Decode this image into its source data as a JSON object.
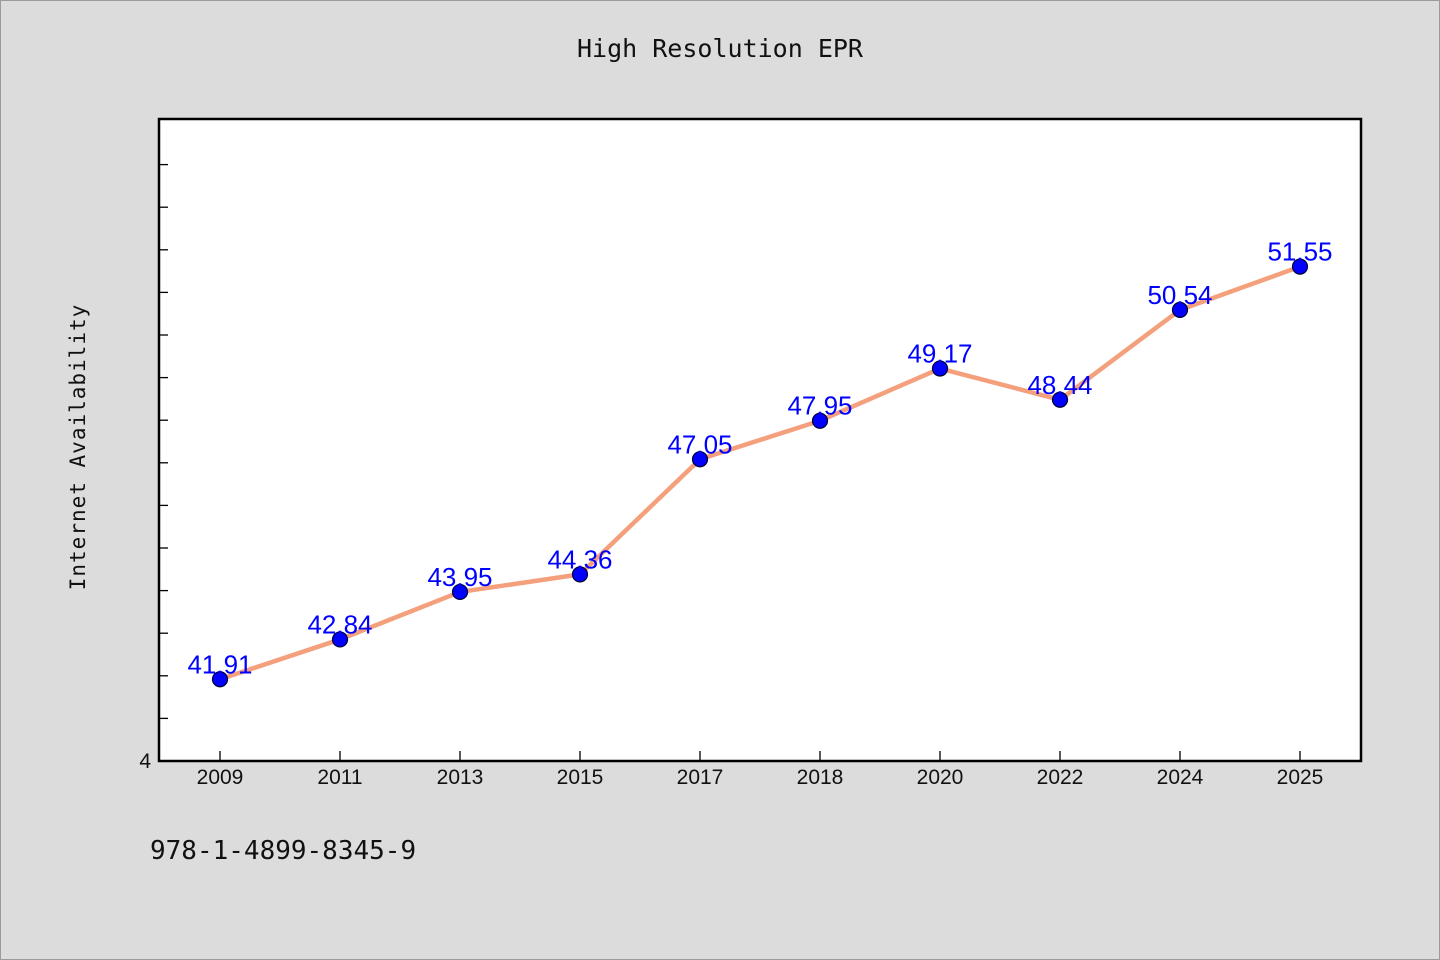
{
  "chart_data": {
    "type": "line",
    "title": "High Resolution EPR",
    "xlabel": "",
    "ylabel": "Internet Availability",
    "categories": [
      "2009",
      "2011",
      "2013",
      "2015",
      "2017",
      "2018",
      "2020",
      "2022",
      "2024",
      "2025"
    ],
    "series": [
      {
        "values": [
          41.91,
          42.84,
          43.95,
          44.36,
          47.05,
          47.95,
          49.17,
          48.44,
          50.54,
          51.55
        ],
        "line_color": "#f4a07c",
        "marker_color": "#0000ff",
        "data_labels": [
          "41.91",
          "42.84",
          "43.95",
          "44.36",
          "47.05",
          "47.95",
          "49.17",
          "48.44",
          "50.54",
          "51.55"
        ]
      }
    ],
    "y_tick_labels": [
      "4"
    ],
    "ylim": [
      40,
      55
    ],
    "grid": false,
    "legend": "none",
    "colors": {
      "background": "#dcdcdc",
      "plot_background": "#ffffff",
      "data_label": "#0000ff"
    }
  },
  "footer": {
    "code": "978-1-4899-8345-9"
  }
}
